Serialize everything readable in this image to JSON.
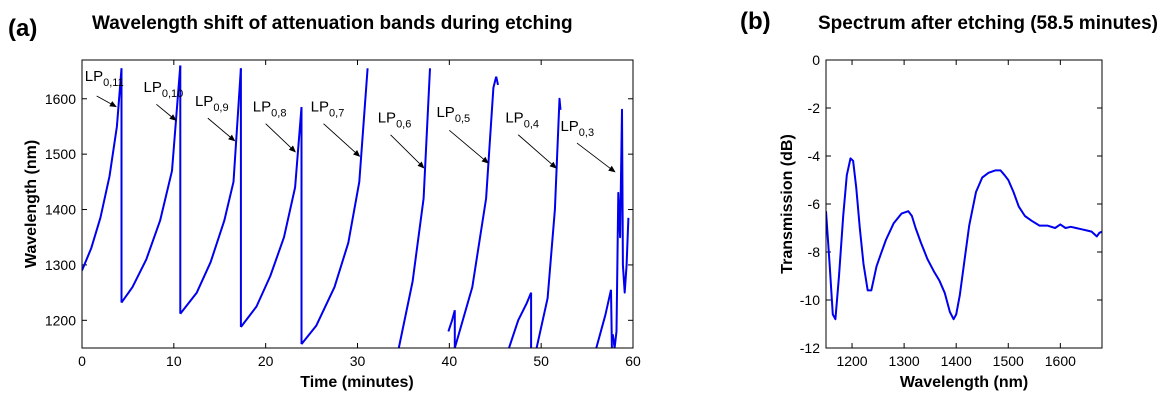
{
  "chart_data": [
    {
      "type": "line",
      "panel_label": "(a)",
      "title": "Wavelength shift of attenuation bands during etching",
      "xlabel": "Time (minutes)",
      "ylabel": "Wavelength (nm)",
      "xlim": [
        0,
        60
      ],
      "ylim": [
        1150,
        1670
      ],
      "xticks": [
        0,
        10,
        20,
        30,
        40,
        50,
        60
      ],
      "yticks": [
        1200,
        1300,
        1400,
        1500,
        1600
      ],
      "color": "#0000ee",
      "segments": [
        {
          "x": [
            0,
            1,
            2,
            3,
            3.8,
            4.3
          ],
          "y": [
            1290,
            1330,
            1385,
            1460,
            1550,
            1655
          ]
        },
        {
          "x": [
            4.3,
            4.3
          ],
          "y": [
            1655,
            1232
          ]
        },
        {
          "x": [
            4.3,
            5.5,
            7,
            8.5,
            9.8,
            10.7
          ],
          "y": [
            1232,
            1260,
            1310,
            1380,
            1470,
            1660
          ]
        },
        {
          "x": [
            10.7,
            10.7
          ],
          "y": [
            1660,
            1212
          ]
        },
        {
          "x": [
            10.7,
            12.5,
            14,
            15.5,
            16.5,
            17.3
          ],
          "y": [
            1212,
            1250,
            1305,
            1380,
            1450,
            1655
          ]
        },
        {
          "x": [
            17.3,
            17.3
          ],
          "y": [
            1655,
            1188
          ]
        },
        {
          "x": [
            17.3,
            19,
            20.5,
            22,
            23.2,
            23.9
          ],
          "y": [
            1188,
            1225,
            1280,
            1350,
            1440,
            1585
          ]
        },
        {
          "x": [
            23.9,
            23.9
          ],
          "y": [
            1585,
            1157
          ]
        },
        {
          "x": [
            23.9,
            25.5,
            27.5,
            29,
            30.2,
            31.1
          ],
          "y": [
            1157,
            1190,
            1260,
            1340,
            1450,
            1655
          ]
        },
        {
          "x": [
            34.5,
            36,
            37.2,
            37.9
          ],
          "y": [
            1150,
            1270,
            1420,
            1655
          ]
        },
        {
          "x": [
            39.9,
            40.3,
            40.6
          ],
          "y": [
            1180,
            1200,
            1218
          ]
        },
        {
          "x": [
            40.6,
            40.6
          ],
          "y": [
            1218,
            1150
          ]
        },
        {
          "x": [
            40.6,
            42.5,
            44,
            44.8,
            45.1
          ],
          "y": [
            1150,
            1260,
            1420,
            1620,
            1640
          ]
        },
        {
          "x": [
            45.1,
            45.3
          ],
          "y": [
            1640,
            1625
          ]
        },
        {
          "x": [
            46.5,
            47.5,
            48.4,
            48.9
          ],
          "y": [
            1150,
            1200,
            1230,
            1250
          ]
        },
        {
          "x": [
            48.9,
            48.9
          ],
          "y": [
            1250,
            1150
          ]
        },
        {
          "x": [
            49.5,
            50.7,
            51.5,
            52,
            52.1
          ],
          "y": [
            1150,
            1240,
            1400,
            1600,
            1580
          ]
        },
        {
          "x": [
            56,
            57,
            57.6
          ],
          "y": [
            1150,
            1210,
            1255
          ]
        },
        {
          "x": [
            57.6,
            57.7
          ],
          "y": [
            1255,
            1150
          ]
        },
        {
          "x": [
            57.8,
            58,
            58.2,
            58.4,
            58.6,
            58.8,
            58.9,
            59.1,
            59.3,
            59.5
          ],
          "y": [
            1175,
            1150,
            1180,
            1430,
            1350,
            1580,
            1300,
            1250,
            1300,
            1385
          ]
        }
      ],
      "annotations": [
        {
          "base": "LP",
          "sub": "0,11",
          "text_x": 0.3,
          "text_y": 1632,
          "arrow_from": [
            1.6,
            1605
          ],
          "arrow_to": [
            3.8,
            1585
          ]
        },
        {
          "base": "LP",
          "sub": "0,10",
          "text_x": 6.7,
          "text_y": 1612,
          "arrow_from": [
            8.1,
            1590
          ],
          "arrow_to": [
            10.3,
            1560
          ]
        },
        {
          "base": "LP",
          "sub": "0,9",
          "text_x": 12.3,
          "text_y": 1587,
          "arrow_from": [
            13.7,
            1565
          ],
          "arrow_to": [
            16.7,
            1523
          ]
        },
        {
          "base": "LP",
          "sub": "0,8",
          "text_x": 18.6,
          "text_y": 1577,
          "arrow_from": [
            20,
            1555
          ],
          "arrow_to": [
            23.3,
            1503
          ]
        },
        {
          "base": "LP",
          "sub": "0,7",
          "text_x": 24.9,
          "text_y": 1577,
          "arrow_from": [
            26.3,
            1555
          ],
          "arrow_to": [
            30.3,
            1495
          ]
        },
        {
          "base": "LP",
          "sub": "0,6",
          "text_x": 32.2,
          "text_y": 1557,
          "arrow_from": [
            33.6,
            1535
          ],
          "arrow_to": [
            37.3,
            1474
          ]
        },
        {
          "base": "LP",
          "sub": "0,5",
          "text_x": 38.6,
          "text_y": 1567,
          "arrow_from": [
            40,
            1543
          ],
          "arrow_to": [
            44.3,
            1483
          ]
        },
        {
          "base": "LP",
          "sub": "0,4",
          "text_x": 46.1,
          "text_y": 1557,
          "arrow_from": [
            47.5,
            1535
          ],
          "arrow_to": [
            51.7,
            1474
          ]
        },
        {
          "base": "LP",
          "sub": "0,3",
          "text_x": 52.1,
          "text_y": 1542,
          "arrow_from": [
            53.9,
            1520
          ],
          "arrow_to": [
            58.1,
            1467
          ]
        }
      ]
    },
    {
      "type": "line",
      "panel_label": "(b)",
      "title": "Spectrum after etching (58.5 minutes)",
      "xlabel": "Wavelength (nm)",
      "ylabel": "Transmission (dB)",
      "xlim": [
        1150,
        1680
      ],
      "ylim": [
        -12,
        0
      ],
      "xticks": [
        1200,
        1300,
        1400,
        1500,
        1600
      ],
      "yticks": [
        0,
        -2,
        -4,
        -6,
        -8,
        -10,
        -12
      ],
      "color": "#0000ee",
      "x": [
        1150,
        1157,
        1163,
        1168,
        1175,
        1183,
        1190,
        1197,
        1202,
        1208,
        1215,
        1222,
        1230,
        1237,
        1241,
        1247,
        1255,
        1265,
        1280,
        1295,
        1308,
        1315,
        1322,
        1332,
        1345,
        1357,
        1368,
        1378,
        1388,
        1395,
        1400,
        1407,
        1415,
        1425,
        1438,
        1450,
        1462,
        1475,
        1485,
        1493,
        1500,
        1510,
        1520,
        1532,
        1545,
        1560,
        1575,
        1590,
        1600,
        1610,
        1620,
        1630,
        1640,
        1650,
        1660,
        1670,
        1675,
        1680
      ],
      "y": [
        -6.3,
        -8.5,
        -10.6,
        -10.8,
        -9.0,
        -6.5,
        -4.8,
        -4.1,
        -4.2,
        -5.3,
        -7.0,
        -8.5,
        -9.6,
        -9.6,
        -9.2,
        -8.6,
        -8.1,
        -7.5,
        -6.8,
        -6.4,
        -6.3,
        -6.5,
        -7.0,
        -7.6,
        -8.3,
        -8.8,
        -9.2,
        -9.7,
        -10.5,
        -10.8,
        -10.6,
        -9.8,
        -8.5,
        -6.9,
        -5.5,
        -4.9,
        -4.7,
        -4.6,
        -4.6,
        -4.8,
        -5.0,
        -5.5,
        -6.1,
        -6.5,
        -6.7,
        -6.9,
        -6.9,
        -7.0,
        -6.85,
        -7.0,
        -6.95,
        -7.0,
        -7.05,
        -7.1,
        -7.15,
        -7.35,
        -7.2,
        -7.15
      ]
    }
  ]
}
